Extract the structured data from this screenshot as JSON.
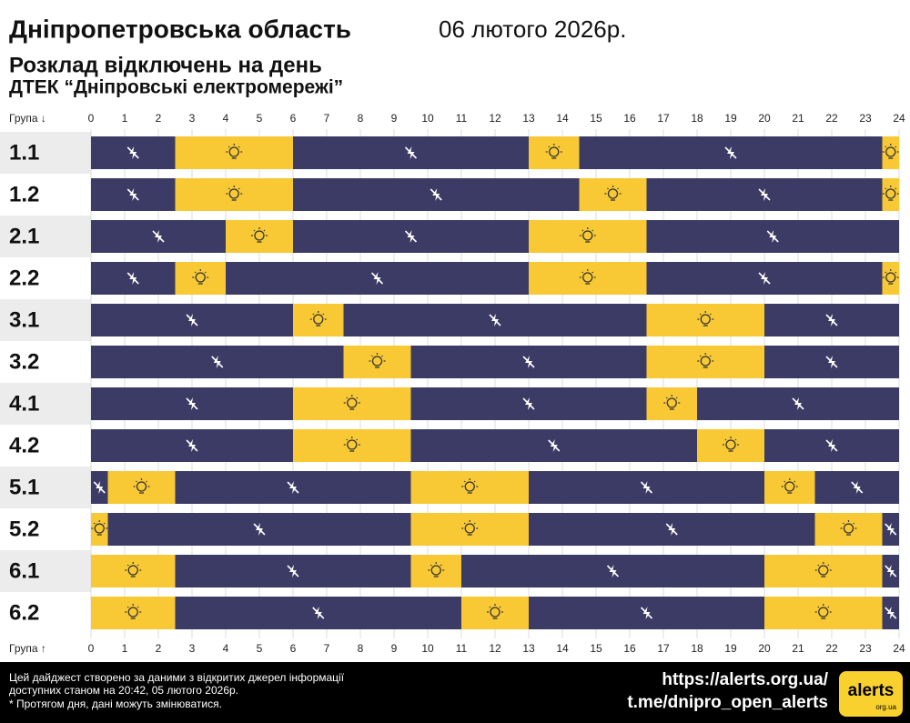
{
  "chart_data": {
    "type": "gantt",
    "title": "Дніпропетровська область",
    "date": "06 лютого 2026р.",
    "subtitle": "Розклад відключень на день",
    "subtitle2": "ДТЕК “Дніпровські електромережі”",
    "y_label_top": "Група ↓",
    "y_label_bottom": "Група ↑",
    "xlim": [
      0,
      24
    ],
    "xticks": [
      0,
      1,
      2,
      3,
      4,
      5,
      6,
      7,
      8,
      9,
      10,
      11,
      12,
      13,
      14,
      15,
      16,
      17,
      18,
      19,
      20,
      21,
      22,
      23,
      24
    ],
    "grid": true,
    "off_color": "#3b3b66",
    "on_color": "#f8c935",
    "groups": [
      {
        "name": "1.1",
        "segments": [
          [
            0,
            2.5,
            "off"
          ],
          [
            2.5,
            6,
            "on"
          ],
          [
            6,
            13,
            "off"
          ],
          [
            13,
            14.5,
            "on"
          ],
          [
            14.5,
            23.5,
            "off"
          ],
          [
            23.5,
            24,
            "on"
          ]
        ]
      },
      {
        "name": "1.2",
        "segments": [
          [
            0,
            2.5,
            "off"
          ],
          [
            2.5,
            6,
            "on"
          ],
          [
            6,
            14.5,
            "off"
          ],
          [
            14.5,
            16.5,
            "on"
          ],
          [
            16.5,
            23.5,
            "off"
          ],
          [
            23.5,
            24,
            "on"
          ]
        ]
      },
      {
        "name": "2.1",
        "segments": [
          [
            0,
            4,
            "off"
          ],
          [
            4,
            6,
            "on"
          ],
          [
            6,
            13,
            "off"
          ],
          [
            13,
            16.5,
            "on"
          ],
          [
            16.5,
            24,
            "off"
          ]
        ]
      },
      {
        "name": "2.2",
        "segments": [
          [
            0,
            2.5,
            "off"
          ],
          [
            2.5,
            4,
            "on"
          ],
          [
            4,
            13,
            "off"
          ],
          [
            13,
            16.5,
            "on"
          ],
          [
            16.5,
            23.5,
            "off"
          ],
          [
            23.5,
            24,
            "on"
          ]
        ]
      },
      {
        "name": "3.1",
        "segments": [
          [
            0,
            6,
            "off"
          ],
          [
            6,
            7.5,
            "on"
          ],
          [
            7.5,
            16.5,
            "off"
          ],
          [
            16.5,
            20,
            "on"
          ],
          [
            20,
            24,
            "off"
          ]
        ]
      },
      {
        "name": "3.2",
        "segments": [
          [
            0,
            7.5,
            "off"
          ],
          [
            7.5,
            9.5,
            "on"
          ],
          [
            9.5,
            16.5,
            "off"
          ],
          [
            16.5,
            20,
            "on"
          ],
          [
            20,
            24,
            "off"
          ]
        ]
      },
      {
        "name": "4.1",
        "segments": [
          [
            0,
            6,
            "off"
          ],
          [
            6,
            9.5,
            "on"
          ],
          [
            9.5,
            16.5,
            "off"
          ],
          [
            16.5,
            18,
            "on"
          ],
          [
            18,
            24,
            "off"
          ]
        ]
      },
      {
        "name": "4.2",
        "segments": [
          [
            0,
            6,
            "off"
          ],
          [
            6,
            9.5,
            "on"
          ],
          [
            9.5,
            18,
            "off"
          ],
          [
            18,
            20,
            "on"
          ],
          [
            20,
            24,
            "off"
          ]
        ]
      },
      {
        "name": "5.1",
        "segments": [
          [
            0,
            0.5,
            "off"
          ],
          [
            0.5,
            2.5,
            "on"
          ],
          [
            2.5,
            9.5,
            "off"
          ],
          [
            9.5,
            13,
            "on"
          ],
          [
            13,
            20,
            "off"
          ],
          [
            20,
            21.5,
            "on"
          ],
          [
            21.5,
            24,
            "off"
          ]
        ]
      },
      {
        "name": "5.2",
        "segments": [
          [
            0,
            0.5,
            "on"
          ],
          [
            0.5,
            9.5,
            "off"
          ],
          [
            9.5,
            13,
            "on"
          ],
          [
            13,
            21.5,
            "off"
          ],
          [
            21.5,
            23.5,
            "on"
          ],
          [
            23.5,
            24,
            "off"
          ]
        ]
      },
      {
        "name": "6.1",
        "segments": [
          [
            0,
            2.5,
            "on"
          ],
          [
            2.5,
            9.5,
            "off"
          ],
          [
            9.5,
            11,
            "on"
          ],
          [
            11,
            20,
            "off"
          ],
          [
            20,
            23.5,
            "on"
          ],
          [
            23.5,
            24,
            "off"
          ]
        ]
      },
      {
        "name": "6.2",
        "segments": [
          [
            0,
            2.5,
            "on"
          ],
          [
            2.5,
            11,
            "off"
          ],
          [
            11,
            13,
            "on"
          ],
          [
            13,
            20,
            "off"
          ],
          [
            20,
            23.5,
            "on"
          ],
          [
            23.5,
            24,
            "off"
          ]
        ]
      }
    ],
    "footer_notes": [
      "Цей дайджест створено за даними з відкритих джерел інформації",
      "доступних станом на 20:42, 05 лютого 2026р.",
      "* Протягом дня, дані можуть змінюватися."
    ],
    "links": [
      "https://alerts.org.ua/",
      "t.me/dnipro_open_alerts"
    ],
    "logo": "alerts",
    "logo_sub": "org.ua"
  }
}
